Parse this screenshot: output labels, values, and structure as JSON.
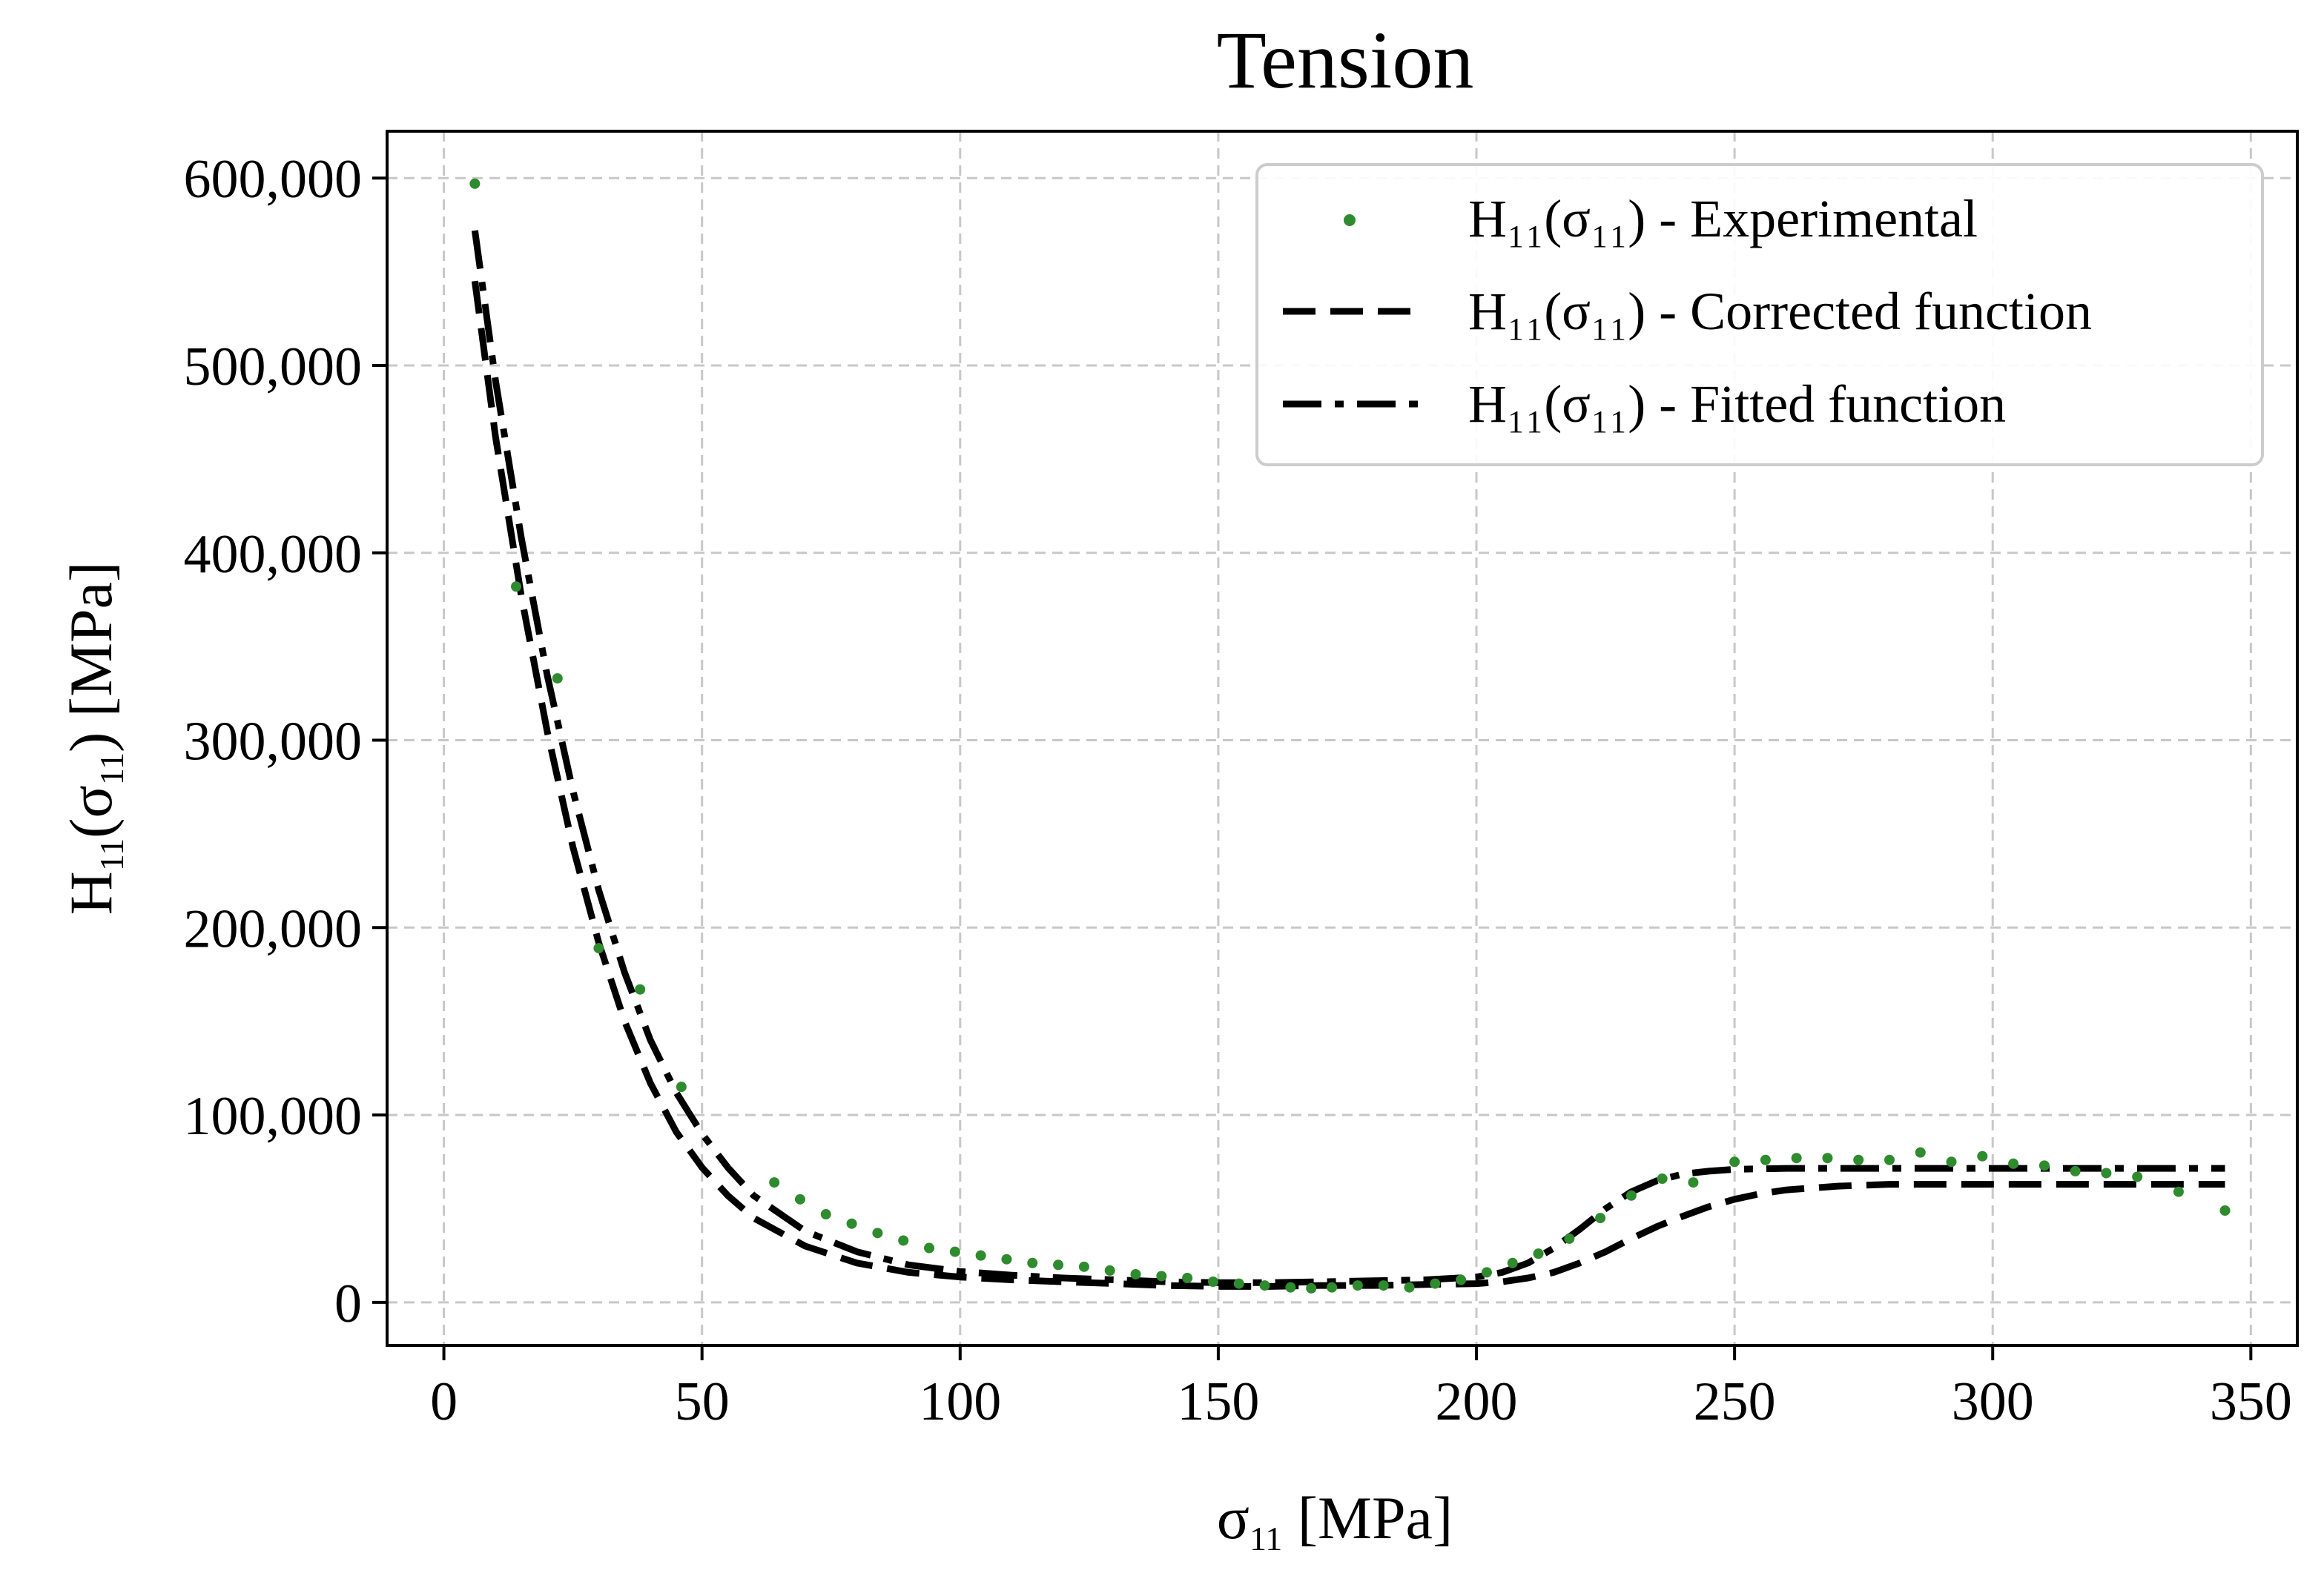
{
  "chart_data": {
    "type": "line",
    "title": "Tension",
    "xlabel": "σ₁₁ [MPa]",
    "ylabel": "H₁₁(σ₁₁) [MPa]",
    "xlim": [
      -11,
      359
    ],
    "ylim": [
      -23000,
      625000
    ],
    "xticks": [
      0,
      50,
      100,
      150,
      200,
      250,
      300,
      350
    ],
    "xtick_labels": [
      "0",
      "50",
      "100",
      "150",
      "200",
      "250",
      "300",
      "350"
    ],
    "yticks": [
      0,
      100000,
      200000,
      300000,
      400000,
      500000,
      600000
    ],
    "ytick_labels": [
      "0",
      "100,000",
      "200,000",
      "300,000",
      "400,000",
      "500,000",
      "600,000"
    ],
    "grid": true,
    "legend_position": "top-right",
    "legend": [
      "H₁₁(σ₁₁) - Experimental",
      "H₁₁(σ₁₁) - Corrected function",
      "H₁₁(σ₁₁) - Fitted function"
    ],
    "series": [
      {
        "name": "H₁₁(σ₁₁) - Experimental",
        "style": "scatter",
        "color": "#2e8b2e",
        "x": [
          6,
          14,
          22,
          30,
          38,
          46,
          64,
          69,
          74,
          79,
          84,
          89,
          94,
          99,
          104,
          109,
          114,
          119,
          124,
          129,
          134,
          139,
          144,
          149,
          154,
          159,
          164,
          168,
          172,
          177,
          182,
          187,
          192,
          197,
          202,
          207,
          212,
          218,
          224,
          230,
          236,
          242,
          250,
          256,
          262,
          268,
          274,
          280,
          286,
          292,
          298,
          304,
          310,
          316,
          322,
          328,
          336,
          345
        ],
        "y": [
          597000,
          382000,
          333000,
          189000,
          167000,
          115000,
          64000,
          55000,
          47000,
          42000,
          37000,
          33000,
          29000,
          27000,
          25000,
          23000,
          21000,
          20000,
          19000,
          17000,
          15000,
          14000,
          13000,
          11000,
          10000,
          9000,
          8000,
          7500,
          8000,
          9000,
          9000,
          8000,
          10000,
          12000,
          16000,
          21000,
          26000,
          34000,
          45000,
          57000,
          66000,
          64000,
          75000,
          76000,
          77000,
          77000,
          76000,
          76000,
          80000,
          75000,
          78000,
          74000,
          73000,
          70000,
          69000,
          67000,
          59000,
          49000
        ]
      },
      {
        "name": "H₁₁(σ₁₁) - Corrected function",
        "style": "dashed",
        "color": "#000000",
        "x": [
          6,
          10,
          15,
          20,
          25,
          30,
          35,
          40,
          45,
          50,
          55,
          60,
          70,
          80,
          90,
          100,
          110,
          120,
          130,
          140,
          150,
          160,
          170,
          180,
          190,
          200,
          205,
          210,
          215,
          220,
          225,
          230,
          235,
          240,
          245,
          250,
          255,
          260,
          270,
          280,
          300,
          320,
          345
        ],
        "y": [
          545000,
          462000,
          377000,
          305000,
          243000,
          192000,
          150000,
          117000,
          91000,
          72000,
          57000,
          45000,
          30000,
          21000,
          16000,
          13500,
          12000,
          11000,
          10000,
          9000,
          8500,
          8500,
          9000,
          9000,
          9500,
          10000,
          11000,
          13000,
          16000,
          21000,
          27000,
          34000,
          40500,
          46000,
          51000,
          55000,
          58000,
          60000,
          62000,
          63000,
          63000,
          63000,
          63000
        ]
      },
      {
        "name": "H₁₁(σ₁₁) - Fitted function",
        "style": "dashdot",
        "color": "#000000",
        "x": [
          6,
          10,
          15,
          20,
          25,
          30,
          35,
          40,
          45,
          50,
          55,
          60,
          70,
          80,
          90,
          100,
          110,
          120,
          130,
          140,
          150,
          160,
          170,
          180,
          190,
          200,
          205,
          210,
          215,
          220,
          225,
          230,
          235,
          240,
          245,
          250,
          260,
          270,
          280,
          300,
          320,
          345
        ],
        "y": [
          572000,
          492000,
          408000,
          335000,
          273000,
          220000,
          176000,
          140000,
          112000,
          90000,
          72000,
          57000,
          38000,
          27000,
          20000,
          16500,
          14500,
          13000,
          12000,
          11000,
          10500,
          10500,
          11000,
          11500,
          12000,
          13500,
          16000,
          21000,
          29000,
          39000,
          50000,
          59000,
          65000,
          68500,
          70000,
          71000,
          71500,
          71500,
          71500,
          71500,
          71500,
          71500
        ]
      }
    ]
  }
}
